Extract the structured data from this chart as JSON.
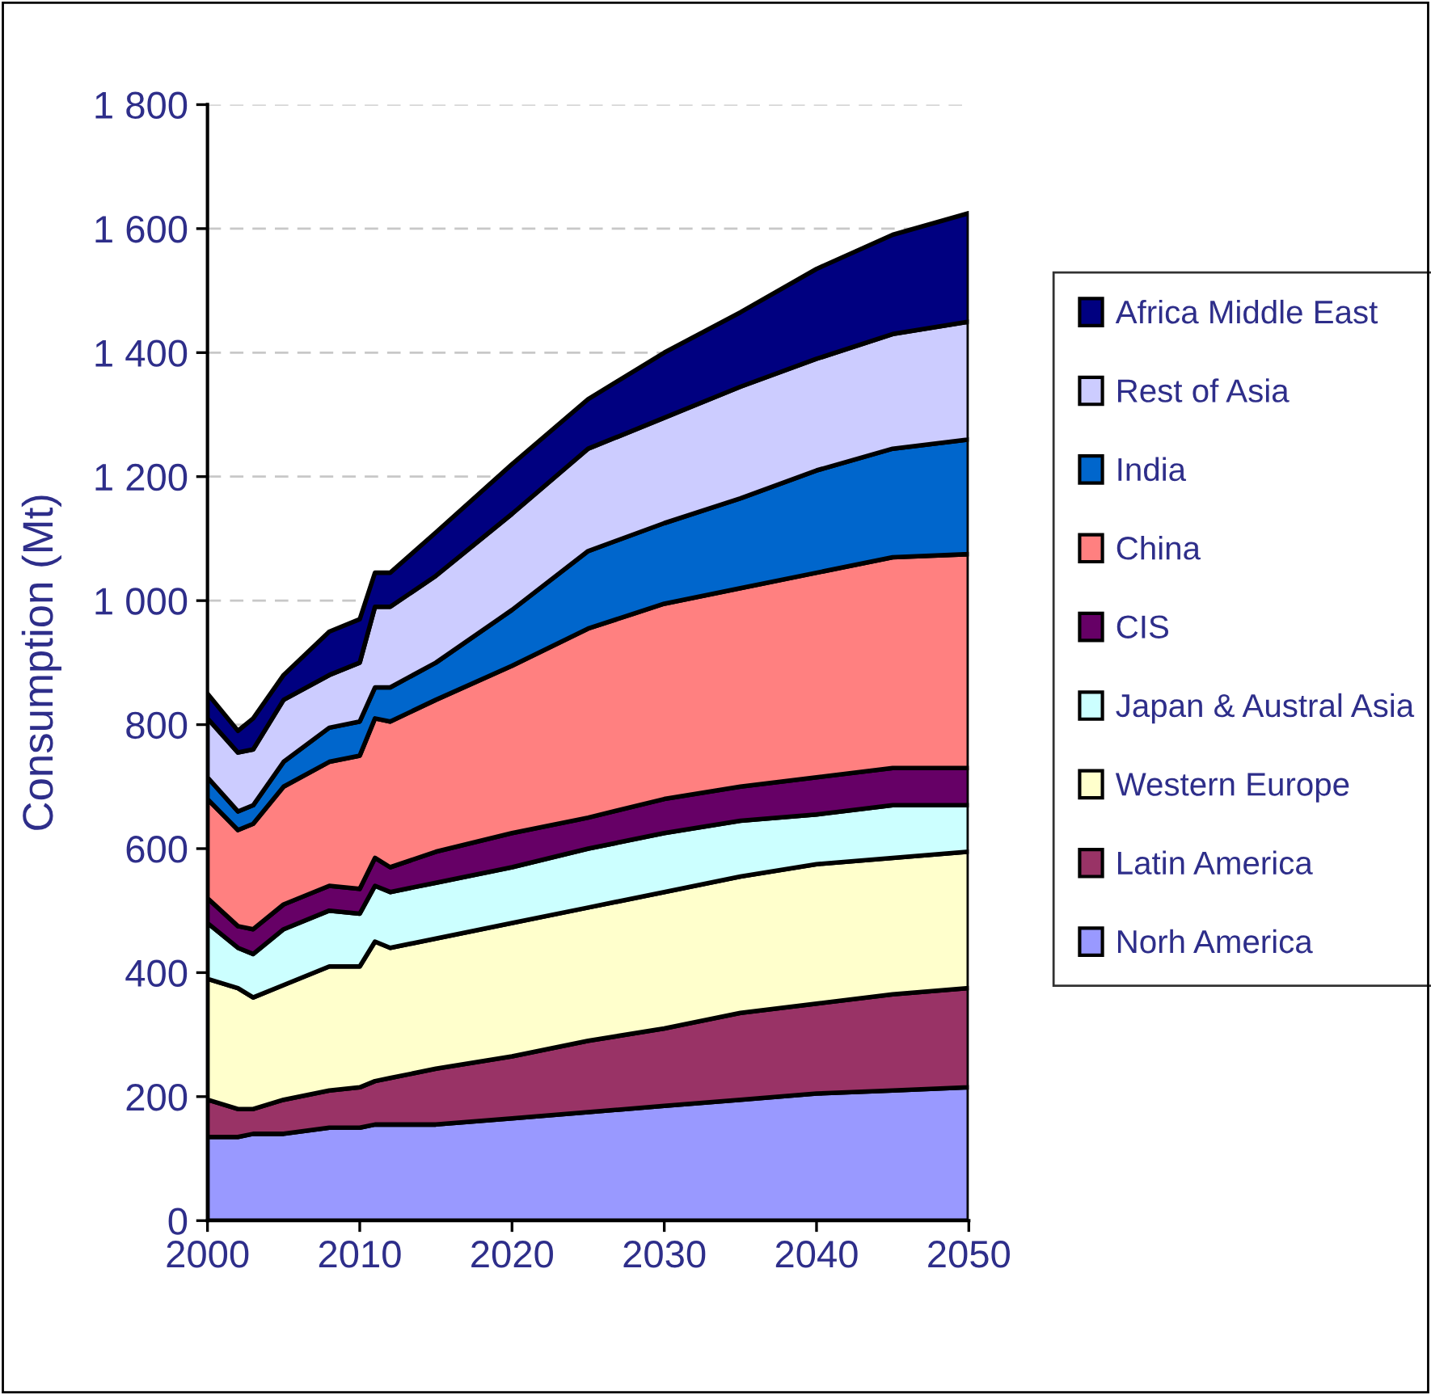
{
  "chart_data": {
    "type": "area",
    "stacked": true,
    "ylabel": "Consumption (Mt)",
    "x": [
      2000,
      2002,
      2003,
      2005,
      2008,
      2010,
      2011,
      2012,
      2015,
      2020,
      2025,
      2030,
      2035,
      2040,
      2045,
      2050
    ],
    "xlim": [
      2000,
      2050
    ],
    "xticks": [
      2000,
      2010,
      2020,
      2030,
      2040,
      2050
    ],
    "ylim": [
      0,
      1800
    ],
    "yticks": [
      0,
      200,
      400,
      600,
      800,
      {
        "value": 1000,
        "label": "1 000"
      },
      {
        "value": 1200,
        "label": "1 200"
      },
      {
        "value": 1400,
        "label": "1 400"
      },
      {
        "value": 1600,
        "label": "1 600"
      },
      {
        "value": 1800,
        "label": "1 800"
      }
    ],
    "grid": "y",
    "legend": "right",
    "line_style": "solid",
    "series": [
      {
        "name": "Norh America",
        "color": "#9999ff",
        "values": [
          135,
          135,
          140,
          140,
          150,
          150,
          155,
          155,
          155,
          165,
          175,
          185,
          195,
          205,
          210,
          215
        ]
      },
      {
        "name": "Latin America",
        "color": "#993366",
        "values": [
          60,
          45,
          40,
          55,
          60,
          65,
          70,
          75,
          90,
          100,
          115,
          125,
          140,
          145,
          155,
          160
        ]
      },
      {
        "name": "Western Europe",
        "color": "#ffffcc",
        "values": [
          195,
          195,
          180,
          185,
          200,
          195,
          225,
          210,
          210,
          215,
          215,
          220,
          220,
          225,
          220,
          220
        ]
      },
      {
        "name": "Japan & Austral Asia",
        "color": "#ccffff",
        "values": [
          90,
          65,
          70,
          90,
          90,
          85,
          90,
          90,
          90,
          90,
          95,
          95,
          90,
          80,
          85,
          75
        ]
      },
      {
        "name": "CIS",
        "color": "#660066",
        "values": [
          40,
          35,
          40,
          40,
          40,
          40,
          45,
          40,
          50,
          55,
          50,
          55,
          55,
          60,
          60,
          60
        ]
      },
      {
        "name": "China",
        "color": "#ff8080",
        "values": [
          160,
          155,
          170,
          190,
          200,
          215,
          225,
          235,
          245,
          270,
          305,
          315,
          320,
          330,
          340,
          345
        ]
      },
      {
        "name": "India",
        "color": "#0066cc",
        "values": [
          35,
          30,
          30,
          40,
          55,
          55,
          50,
          55,
          60,
          90,
          125,
          130,
          145,
          165,
          175,
          185
        ]
      },
      {
        "name": "Rest of Asia",
        "color": "#ccccff",
        "values": [
          95,
          95,
          90,
          100,
          85,
          95,
          130,
          130,
          140,
          155,
          165,
          170,
          180,
          180,
          185,
          190
        ]
      },
      {
        "name": "Africa Middle East",
        "color": "#000080",
        "values": [
          40,
          35,
          50,
          40,
          70,
          70,
          55,
          55,
          70,
          80,
          80,
          105,
          120,
          145,
          160,
          175
        ]
      }
    ]
  }
}
